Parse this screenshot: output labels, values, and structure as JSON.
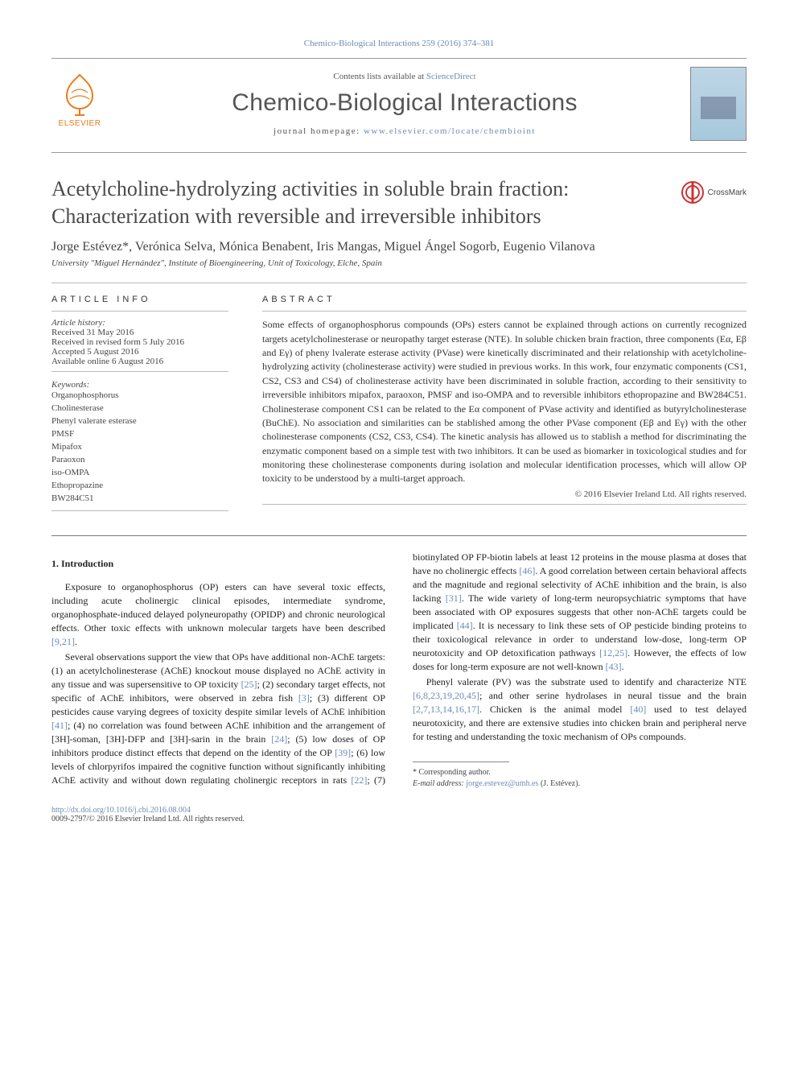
{
  "journalRef": "Chemico-Biological Interactions 259 (2016) 374–381",
  "contentsLine": {
    "prefix": "Contents lists available at ",
    "link": "ScienceDirect"
  },
  "journalName": "Chemico-Biological Interactions",
  "homepageLine": {
    "prefix": "journal homepage: ",
    "url": "www.elsevier.com/locate/chembioint"
  },
  "elsevierWord": "ELSEVIER",
  "crossmarkLabel": "CrossMark",
  "title": "Acetylcholine-hydrolyzing activities in soluble brain fraction: Characterization with reversible and irreversible inhibitors",
  "authors": "Jorge Estévez*, Verónica Selva, Mónica Benabent, Iris Mangas, Miguel Ángel Sogorb, Eugenio Vilanova",
  "affiliation": "University \"Miguel Hernández\", Institute of Bioengineering, Unit of Toxicology, Elche, Spain",
  "articleInfo": {
    "head": "ARTICLE INFO",
    "historyLabel": "Article history:",
    "received": "Received 31 May 2016",
    "revised": "Received in revised form 5 July 2016",
    "accepted": "Accepted 5 August 2016",
    "online": "Available online 6 August 2016",
    "keywordsLabel": "Keywords:",
    "keywords": [
      "Organophosphorus",
      "Cholinesterase",
      "Phenyl valerate esterase",
      "PMSF",
      "Mipafox",
      "Paraoxon",
      "iso-OMPA",
      "Ethopropazine",
      "BW284C51"
    ]
  },
  "abstract": {
    "head": "ABSTRACT",
    "text": "Some effects of organophosphorus compounds (OPs) esters cannot be explained through actions on currently recognized targets acetylcholinesterase or neuropathy target esterase (NTE). In soluble chicken brain fraction, three components (Eα, Eβ and Eγ) of pheny lvalerate esterase activity (PVase) were kinetically discriminated and their relationship with acetylcholine-hydrolyzing activity (cholinesterase activity) were studied in previous works. In this work, four enzymatic components (CS1, CS2, CS3 and CS4) of cholinesterase activity have been discriminated in soluble fraction, according to their sensitivity to irreversible inhibitors mipafox, paraoxon, PMSF and iso-OMPA and to reversible inhibitors ethopropazine and BW284C51. Cholinesterase component CS1 can be related to the Eα component of PVase activity and identified as butyrylcholinesterase (BuChE). No association and similarities can be stablished among the other PVase component (Eβ and Eγ) with the other cholinesterase components (CS2, CS3, CS4). The kinetic analysis has allowed us to stablish a method for discriminating the enzymatic component based on a simple test with two inhibitors. It can be used as biomarker in toxicological studies and for monitoring these cholinesterase components during isolation and molecular identification processes, which will allow OP toxicity to be understood by a multi-target approach.",
    "copyright": "© 2016 Elsevier Ireland Ltd. All rights reserved."
  },
  "body": {
    "section1": "1. Introduction",
    "p1": "Exposure to organophosphorus (OP) esters can have several toxic effects, including acute cholinergic clinical episodes, intermediate syndrome, organophosphate-induced delayed polyneuropathy (OPIDP) and chronic neurological effects. Other toxic effects with unknown molecular targets have been described ",
    "p1ref": "[9,21]",
    "p1tail": ".",
    "p2": "Several observations support the view that OPs have additional non-AChE targets: (1) an acetylcholinesterase (AChE) knockout mouse displayed no AChE activity in any tissue and was supersensitive to OP toxicity ",
    "p2r1": "[25]",
    "p2b": "; (2) secondary target effects, not specific of AChE inhibitors, were observed in zebra fish ",
    "p2r2": "[3]",
    "p2c": "; (3) different OP pesticides cause varying degrees of toxicity despite similar levels of AChE inhibition ",
    "p2r3": "[41]",
    "p2d": "; (4) no correlation was found between AChE inhibition and the arrangement of [3H]-soman, [3H]-DFP and [3H]-sarin in the brain ",
    "p2r4": "[24]",
    "p2e": "; (5) low doses of OP inhibitors produce distinct effects that depend on the identity of the OP ",
    "p2r5": "[39]",
    "p2f": "; (6) low levels of chlorpyrifos impaired the cognitive function without significantly inhibiting AChE activity and without down regulating cholinergic receptors in rats ",
    "p2r6": "[22]",
    "p2g": "; (7) biotinylated OP FP-biotin labels at least 12 proteins in the mouse plasma at doses that have no cholinergic effects ",
    "p2r7": "[46]",
    "p2h": ". A good correlation between certain behavioral affects and the magnitude and regional selectivity of AChE inhibition and the brain, is also lacking ",
    "p2r8": "[31]",
    "p2i": ". The wide variety of long-term neuropsychiatric symptoms that have been associated with OP exposures suggests that other non-AChE targets could be implicated ",
    "p2r9": "[44]",
    "p2j": ". It is necessary to link these sets of OP pesticide binding proteins to their toxicological relevance in order to understand low-dose, long-term OP neurotoxicity and OP detoxification pathways ",
    "p2r10": "[12,25]",
    "p2k": ". However, the effects of low doses for long-term exposure are not well-known ",
    "p2r11": "[43]",
    "p2l": ".",
    "p3a": "Phenyl valerate (PV) was the substrate used to identify and characterize NTE ",
    "p3r1": "[6,8,23,19,20,45]",
    "p3b": "; and other serine hydrolases in neural tissue and the brain ",
    "p3r2": "[2,7,13,14,16,17]",
    "p3c": ". Chicken is the animal model ",
    "p3r3": "[40]",
    "p3d": " used to test delayed neurotoxicity, and there are extensive studies into chicken brain and peripheral nerve for testing and understanding the toxic mechanism of OPs compounds."
  },
  "footnote": {
    "corr": "* Corresponding author.",
    "emailLabel": "E-mail address: ",
    "email": "jorge.estevez@umh.es",
    "emailTail": " (J. Estévez)."
  },
  "footer": {
    "doi": "http://dx.doi.org/10.1016/j.cbi.2016.08.004",
    "copyline": "0009-2797/© 2016 Elsevier Ireland Ltd. All rights reserved."
  },
  "colors": {
    "link": "#6b8bb5",
    "elsevier": "#ed7b1c"
  }
}
